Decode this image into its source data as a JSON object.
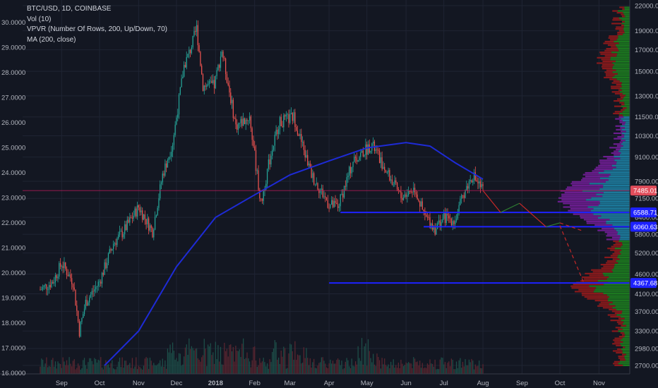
{
  "legend": {
    "symbol": "BTC/USD, 1D, COINBASE",
    "vol": "Vol (10)",
    "vpvr": "VPVR (Number Of Rows, 200, Up/Down, 70)",
    "ma": "MA (200, close)"
  },
  "colors": {
    "background": "#131722",
    "up": "#26a69a",
    "down": "#ef5350",
    "ma": "#1e2bd6",
    "level": "#1e22ff",
    "price_line": "#c2185b",
    "vpvr_up": "#1f8a1f",
    "vpvr_down": "#9e1a1a",
    "vpvr_value_area": "#7b1fa2",
    "vpvr_value_area_alt": "#1f8bb0",
    "projection_up": "#2e7d32",
    "projection_down": "#c62828"
  },
  "chart_data": {
    "type": "candlestick",
    "left_axis_ticks": [
      "16.0000",
      "17.0000",
      "18.0000",
      "19.0000",
      "20.0000",
      "21.0000",
      "22.0000",
      "23.0000",
      "24.0000",
      "25.0000",
      "26.0000",
      "27.0000",
      "28.0000",
      "29.0000",
      "30.0000"
    ],
    "right_axis_ticks": [
      "2700.00",
      "2980.00",
      "3300.00",
      "3700.00",
      "4100.00",
      "4600.00",
      "5200.00",
      "5800.00",
      "6400.00",
      "7150.00",
      "7900.00",
      "9100.00",
      "10300.00",
      "11500.00",
      "13000.00",
      "15000.00",
      "17000.00",
      "19000.00",
      "22000.00"
    ],
    "x_ticks": [
      "Sep",
      "Oct",
      "Nov",
      "Dec",
      "2018",
      "Feb",
      "Mar",
      "Apr",
      "May",
      "Jun",
      "Jul",
      "Aug",
      "Sep",
      "Oct",
      "Nov"
    ],
    "price_labels": [
      {
        "label": "7485.01",
        "value": 7485.01,
        "kind": "last"
      },
      {
        "label": "6588.71",
        "value": 6588.71,
        "kind": "level"
      },
      {
        "label": "6060.63",
        "value": 6060.63,
        "kind": "level"
      },
      {
        "label": "4367.68",
        "value": 4367.68,
        "kind": "level"
      }
    ],
    "horizontal_levels": [
      {
        "value": 6588.71,
        "from": "2018-04-10",
        "to": "2018-11-30"
      },
      {
        "value": 6060.63,
        "from": "2018-06-15",
        "to": "2018-11-30"
      },
      {
        "value": 4367.68,
        "from": "2018-04-01",
        "to": "2018-11-30"
      }
    ],
    "price_path": [
      [
        "2017-08-15",
        4200
      ],
      [
        "2017-08-25",
        4400
      ],
      [
        "2017-09-01",
        4900
      ],
      [
        "2017-09-10",
        4400
      ],
      [
        "2017-09-15",
        3300
      ],
      [
        "2017-09-20",
        3900
      ],
      [
        "2017-10-01",
        4400
      ],
      [
        "2017-10-12",
        5500
      ],
      [
        "2017-10-20",
        5900
      ],
      [
        "2017-11-01",
        6800
      ],
      [
        "2017-11-12",
        5900
      ],
      [
        "2017-11-20",
        8200
      ],
      [
        "2017-11-28",
        9900
      ],
      [
        "2017-12-07",
        15500
      ],
      [
        "2017-12-12",
        17000
      ],
      [
        "2017-12-17",
        19300
      ],
      [
        "2017-12-22",
        13800
      ],
      [
        "2017-12-31",
        13800
      ],
      [
        "2018-01-06",
        17000
      ],
      [
        "2018-01-17",
        10900
      ],
      [
        "2018-01-28",
        11500
      ],
      [
        "2018-02-06",
        6900
      ],
      [
        "2018-02-12",
        8700
      ],
      [
        "2018-02-20",
        11100
      ],
      [
        "2018-03-04",
        11500
      ],
      [
        "2018-03-18",
        8200
      ],
      [
        "2018-04-01",
        6900
      ],
      [
        "2018-04-08",
        6800
      ],
      [
        "2018-04-20",
        8900
      ],
      [
        "2018-05-05",
        9800
      ],
      [
        "2018-05-18",
        8200
      ],
      [
        "2018-05-28",
        7200
      ],
      [
        "2018-06-08",
        7600
      ],
      [
        "2018-06-15",
        6500
      ],
      [
        "2018-06-24",
        6000
      ],
      [
        "2018-07-01",
        6400
      ],
      [
        "2018-07-10",
        6300
      ],
      [
        "2018-07-17",
        7400
      ],
      [
        "2018-07-24",
        8200
      ],
      [
        "2018-08-01",
        7485
      ]
    ],
    "ma200_path": [
      [
        "2017-10-05",
        2700
      ],
      [
        "2017-11-01",
        3300
      ],
      [
        "2017-12-01",
        4800
      ],
      [
        "2018-01-01",
        6400
      ],
      [
        "2018-02-01",
        7300
      ],
      [
        "2018-03-01",
        8200
      ],
      [
        "2018-04-01",
        8900
      ],
      [
        "2018-05-01",
        9600
      ],
      [
        "2018-06-01",
        9900
      ],
      [
        "2018-06-20",
        9700
      ],
      [
        "2018-07-10",
        8800
      ],
      [
        "2018-08-01",
        8000
      ]
    ],
    "projection": [
      {
        "from": [
          "2018-08-01",
          7485
        ],
        "to": [
          "2018-08-15",
          6590
        ],
        "dir": "down"
      },
      {
        "from": [
          "2018-08-15",
          6590
        ],
        "to": [
          "2018-08-30",
          6950
        ],
        "dir": "up"
      },
      {
        "from": [
          "2018-08-30",
          6950
        ],
        "to": [
          "2018-09-20",
          6060
        ],
        "dir": "down"
      },
      {
        "from": [
          "2018-09-20",
          6060
        ],
        "to": [
          "2018-10-01",
          6200
        ],
        "dir": "up"
      },
      {
        "from": [
          "2018-10-01",
          6200
        ],
        "to": [
          "2018-10-20",
          5900
        ],
        "dir": "down",
        "dashed": true
      },
      {
        "from": [
          "2018-10-01",
          6100
        ],
        "to": [
          "2018-10-20",
          4367.68
        ],
        "dir": "down",
        "dashed": true
      }
    ],
    "grid": true
  }
}
